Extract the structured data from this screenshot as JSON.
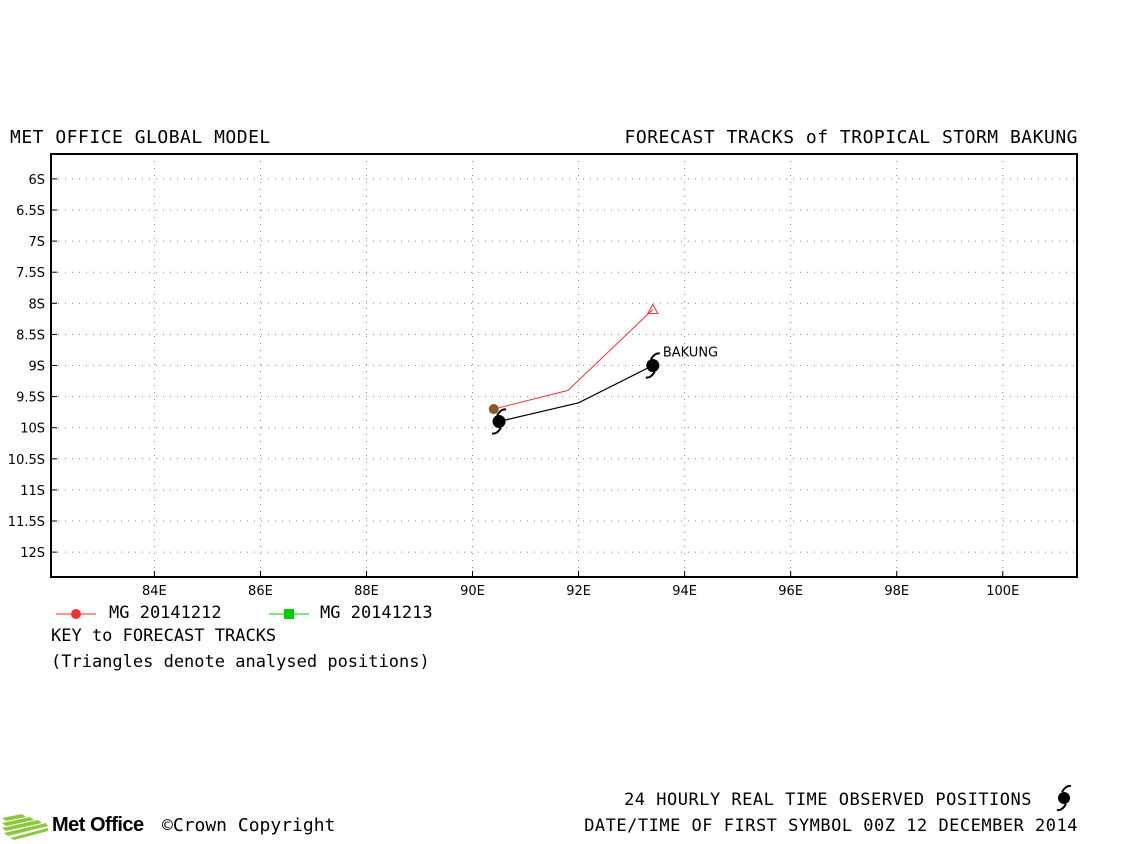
{
  "header": {
    "left_title": "MET OFFICE GLOBAL MODEL",
    "right_title": "FORECAST TRACKS of TROPICAL STORM BAKUNG"
  },
  "map": {
    "lat_labels": [
      "6S",
      "6.5S",
      "7S",
      "7.5S",
      "8S",
      "8.5S",
      "9S",
      "9.5S",
      "10S",
      "10.5S",
      "11S",
      "11.5S",
      "12S"
    ],
    "lat_values": [
      -6,
      -6.5,
      -7,
      -7.5,
      -8,
      -8.5,
      -9,
      -9.5,
      -10,
      -10.5,
      -11,
      -11.5,
      -12
    ],
    "lon_labels": [
      "84E",
      "86E",
      "88E",
      "90E",
      "92E",
      "94E",
      "96E",
      "98E",
      "100E"
    ],
    "lon_values": [
      84,
      86,
      88,
      90,
      92,
      94,
      96,
      98,
      100
    ],
    "lon_range": [
      82.05,
      101.4
    ],
    "lat_range": [
      -5.6,
      -12.4
    ],
    "grid": "dotted",
    "storm_label": "BAKUNG",
    "observed_track": [
      {
        "lon": 90.5,
        "lat": -9.9
      },
      {
        "lon": 92.0,
        "lat": -9.6
      },
      {
        "lon": 93.4,
        "lat": -9.0
      }
    ],
    "forecast_tracks": [
      {
        "name": "MG 20141212",
        "color": "#ee3333",
        "marker": "circle",
        "points": [
          {
            "lon": 90.4,
            "lat": -9.7
          },
          {
            "lon": 91.8,
            "lat": -9.4
          },
          {
            "lon": 93.4,
            "lat": -8.1
          }
        ]
      }
    ]
  },
  "legend": {
    "items": [
      {
        "label": "MG 20141212",
        "color": "#ee3333",
        "marker": "circle"
      },
      {
        "label": "MG 20141213",
        "color": "#00cc00",
        "marker": "square"
      }
    ],
    "key_title": "KEY to FORECAST TRACKS",
    "key_note": "(Triangles denote analysed positions)"
  },
  "footer": {
    "observed_note": "24 HOURLY REAL TIME OBSERVED POSITIONS",
    "date_note": "DATE/TIME OF FIRST SYMBOL 00Z 12 DECEMBER 2014",
    "logo_text": "Met Office",
    "copyright": "©Crown Copyright"
  },
  "colors": {
    "observed_track": "#000000",
    "grid": "#888888",
    "analysed_point": "#8b5a2b",
    "logo_green": "#8dc63f"
  }
}
